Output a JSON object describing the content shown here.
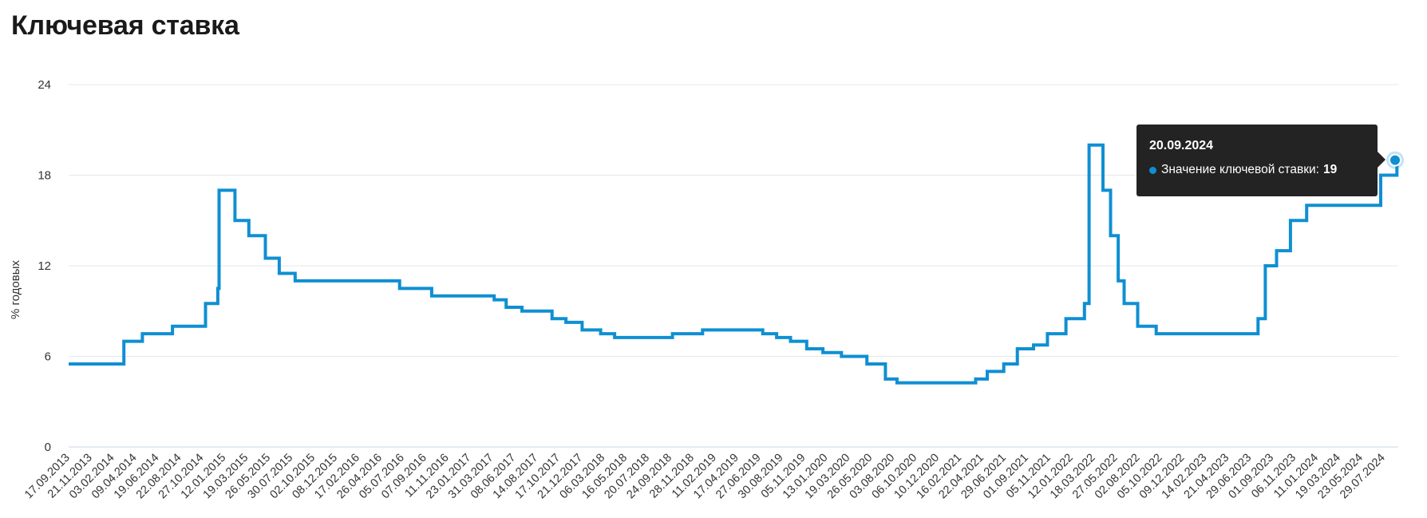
{
  "page": {
    "title": "Ключевая ставка"
  },
  "colors": {
    "line": "#0f8fd3",
    "grid": "#e4e7ec",
    "axis": "#c9d4e6",
    "tooltip_bg": "#232323"
  },
  "tooltip": {
    "date": "20.09.2024",
    "series_label": "Значение ключевой ставки:",
    "value": "19"
  },
  "chart_data": {
    "type": "line",
    "ylabel": "% годовых",
    "ylim": [
      0,
      24
    ],
    "yticks": [
      0,
      6,
      12,
      18,
      24
    ],
    "grid": true,
    "xlim": [
      "2013-09-17",
      "2024-09-20"
    ],
    "xtick_labels": [
      "17.09.2013",
      "21.11.2013",
      "03.02.2014",
      "09.04.2014",
      "19.06.2014",
      "22.08.2014",
      "27.10.2014",
      "12.01.2015",
      "19.03.2015",
      "26.05.2015",
      "30.07.2015",
      "02.10.2015",
      "08.12.2015",
      "17.02.2016",
      "26.04.2016",
      "05.07.2016",
      "07.09.2016",
      "11.11.2016",
      "23.01.2017",
      "31.03.2017",
      "08.06.2017",
      "14.08.2017",
      "17.10.2017",
      "21.12.2017",
      "06.03.2018",
      "16.05.2018",
      "20.07.2018",
      "24.09.2018",
      "28.11.2018",
      "11.02.2019",
      "17.04.2019",
      "27.06.2019",
      "30.08.2019",
      "05.11.2019",
      "13.01.2020",
      "19.03.2020",
      "26.05.2020",
      "03.08.2020",
      "06.10.2020",
      "10.12.2020",
      "16.02.2021",
      "22.04.2021",
      "29.06.2021",
      "01.09.2021",
      "05.11.2021",
      "12.01.2022",
      "18.03.2022",
      "27.05.2022",
      "02.08.2022",
      "05.10.2022",
      "09.12.2022",
      "14.02.2023",
      "21.04.2023",
      "29.06.2023",
      "01.09.2023",
      "06.11.2023",
      "11.01.2024",
      "19.03.2024",
      "23.05.2024",
      "29.07.2024"
    ],
    "series": [
      {
        "step": true,
        "points": [
          [
            "2013-09-17",
            5.5
          ],
          [
            "2014-03-03",
            7.0
          ],
          [
            "2014-04-28",
            7.5
          ],
          [
            "2014-07-28",
            8.0
          ],
          [
            "2014-11-05",
            9.5
          ],
          [
            "2014-12-12",
            10.5
          ],
          [
            "2014-12-16",
            17.0
          ],
          [
            "2015-02-02",
            15.0
          ],
          [
            "2015-03-16",
            14.0
          ],
          [
            "2015-05-05",
            12.5
          ],
          [
            "2015-06-16",
            11.5
          ],
          [
            "2015-08-03",
            11.0
          ],
          [
            "2016-06-14",
            10.5
          ],
          [
            "2016-09-19",
            10.0
          ],
          [
            "2017-03-27",
            9.75
          ],
          [
            "2017-05-02",
            9.25
          ],
          [
            "2017-06-19",
            9.0
          ],
          [
            "2017-09-18",
            8.5
          ],
          [
            "2017-10-30",
            8.25
          ],
          [
            "2017-12-18",
            7.75
          ],
          [
            "2018-02-12",
            7.5
          ],
          [
            "2018-03-26",
            7.25
          ],
          [
            "2018-09-17",
            7.5
          ],
          [
            "2018-12-17",
            7.75
          ],
          [
            "2019-06-17",
            7.5
          ],
          [
            "2019-07-29",
            7.25
          ],
          [
            "2019-09-09",
            7.0
          ],
          [
            "2019-10-28",
            6.5
          ],
          [
            "2019-12-16",
            6.25
          ],
          [
            "2020-02-10",
            6.0
          ],
          [
            "2020-04-27",
            5.5
          ],
          [
            "2020-06-22",
            4.5
          ],
          [
            "2020-07-27",
            4.25
          ],
          [
            "2021-03-22",
            4.5
          ],
          [
            "2021-04-26",
            5.0
          ],
          [
            "2021-06-15",
            5.5
          ],
          [
            "2021-07-26",
            6.5
          ],
          [
            "2021-09-13",
            6.75
          ],
          [
            "2021-10-25",
            7.5
          ],
          [
            "2021-12-20",
            8.5
          ],
          [
            "2022-02-14",
            9.5
          ],
          [
            "2022-02-28",
            20.0
          ],
          [
            "2022-04-11",
            17.0
          ],
          [
            "2022-05-04",
            14.0
          ],
          [
            "2022-05-27",
            11.0
          ],
          [
            "2022-06-14",
            9.5
          ],
          [
            "2022-07-25",
            8.0
          ],
          [
            "2022-09-19",
            7.5
          ],
          [
            "2023-07-24",
            8.5
          ],
          [
            "2023-08-15",
            12.0
          ],
          [
            "2023-09-18",
            13.0
          ],
          [
            "2023-10-30",
            15.0
          ],
          [
            "2023-12-18",
            16.0
          ],
          [
            "2024-07-29",
            18.0
          ],
          [
            "2024-09-16",
            19.0
          ],
          [
            "2024-09-20",
            19.0
          ]
        ]
      }
    ]
  }
}
